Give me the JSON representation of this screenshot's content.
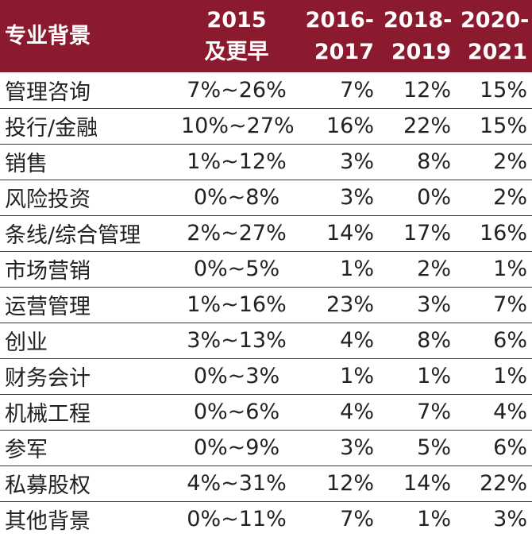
{
  "colors": {
    "header_bg": "#8b1a2f",
    "header_text": "#ffffff",
    "row_line": "#333333"
  },
  "table": {
    "headers": [
      {
        "line1": "专业背景",
        "line2": ""
      },
      {
        "line1": "2015",
        "line2": "及更早"
      },
      {
        "line1": "2016-",
        "line2": "2017"
      },
      {
        "line1": "2018-",
        "line2": "2019"
      },
      {
        "line1": "2020-",
        "line2": "2021"
      }
    ],
    "rows": [
      [
        "管理咨询",
        "7%~26%",
        "7%",
        "12%",
        "15%"
      ],
      [
        "投行/金融",
        "10%~27%",
        "16%",
        "22%",
        "15%"
      ],
      [
        "销售",
        "1%~12%",
        "3%",
        "8%",
        "2%"
      ],
      [
        "风险投资",
        "0%~8%",
        "3%",
        "0%",
        "2%"
      ],
      [
        "条线/综合管理",
        "2%~27%",
        "14%",
        "17%",
        "16%"
      ],
      [
        "市场营销",
        "0%~5%",
        "1%",
        "2%",
        "1%"
      ],
      [
        "运营管理",
        "1%~16%",
        "23%",
        "3%",
        "7%"
      ],
      [
        "创业",
        "3%~13%",
        "4%",
        "8%",
        "6%"
      ],
      [
        "财务会计",
        "0%~3%",
        "1%",
        "1%",
        "1%"
      ],
      [
        "机械工程",
        "0%~6%",
        "4%",
        "7%",
        "4%"
      ],
      [
        "参军",
        "0%~9%",
        "3%",
        "5%",
        "6%"
      ],
      [
        "私募股权",
        "4%~31%",
        "12%",
        "14%",
        "22%"
      ],
      [
        "其他背景",
        "0%~11%",
        "7%",
        "1%",
        "3%"
      ]
    ]
  }
}
